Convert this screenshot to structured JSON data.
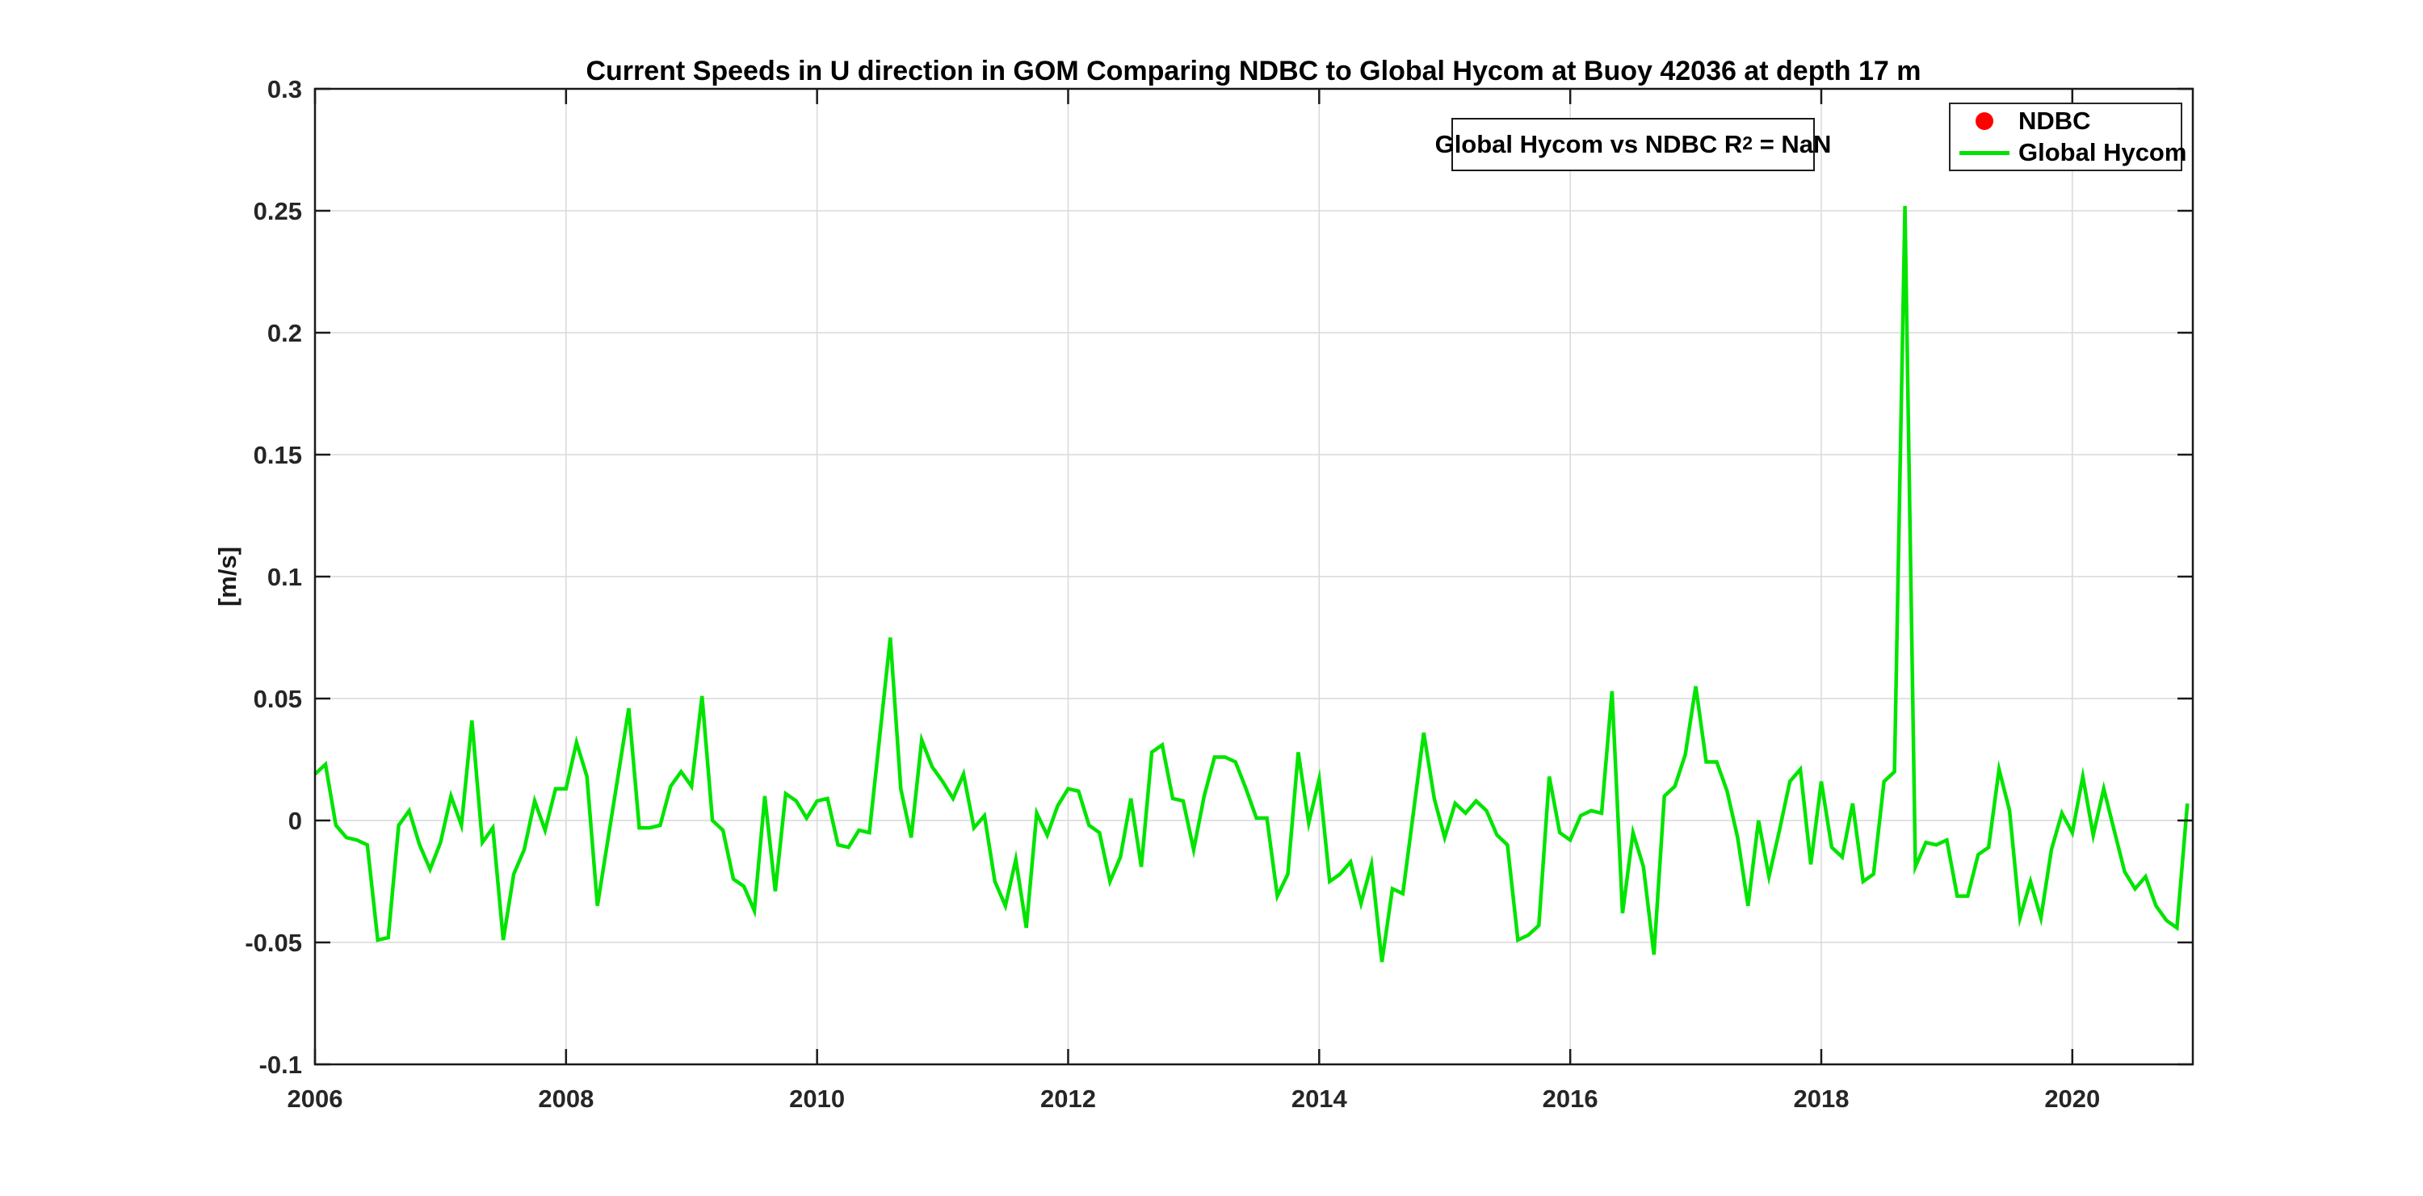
{
  "header": {
    "title": "Current Speeds in U direction in GOM Comparing NDBC to Global Hycom at Buoy  42036  at depth  17 m"
  },
  "annotation": {
    "text_main": "Global Hycom vs NDBC R",
    "text_sup": "2",
    "text_tail": " = NaN"
  },
  "legend": {
    "items": [
      {
        "label": "NDBC",
        "marker": "dot",
        "color": "#ff0000"
      },
      {
        "label": "Global Hycom",
        "marker": "line",
        "color": "#00e400"
      }
    ]
  },
  "colors": {
    "line_green": "#00e400",
    "marker_red": "#ff0000",
    "grid": "#d9d9d9",
    "axis": "#1a1a1a",
    "tick_text": "#262626"
  },
  "chart_data": {
    "type": "line",
    "title": "Current Speeds in U direction in GOM Comparing NDBC to Global Hycom at Buoy  42036  at depth  17 m",
    "xlabel": "",
    "ylabel": "[m/s]",
    "xlim": [
      2006,
      2020.96
    ],
    "ylim": [
      -0.1,
      0.3
    ],
    "grid": true,
    "legend_position": "top-right",
    "x_ticks": [
      2006,
      2008,
      2010,
      2012,
      2014,
      2016,
      2018,
      2020
    ],
    "x_tick_labels": [
      "2006",
      "2008",
      "2010",
      "2012",
      "2014",
      "2016",
      "2018",
      "2020"
    ],
    "y_ticks": [
      -0.1,
      -0.05,
      0,
      0.05,
      0.1,
      0.15,
      0.2,
      0.25,
      0.3
    ],
    "y_tick_labels": [
      "-0.1",
      "-0.05",
      "0",
      "0.05",
      "0.1",
      "0.15",
      "0.2",
      "0.25",
      "0.3"
    ],
    "x_start": 2006.0,
    "points_per_year": 12,
    "series": [
      {
        "name": "NDBC",
        "type": "scatter",
        "color": "#ff0000",
        "values": []
      },
      {
        "name": "Global Hycom",
        "type": "line",
        "color": "#00e400",
        "values": [
          0.019,
          0.023,
          -0.002,
          -0.007,
          -0.008,
          -0.01,
          -0.049,
          -0.048,
          -0.002,
          0.004,
          -0.01,
          -0.02,
          -0.009,
          0.01,
          -0.002,
          0.041,
          -0.009,
          -0.003,
          -0.049,
          -0.022,
          -0.012,
          0.008,
          -0.004,
          0.013,
          0.013,
          0.032,
          0.018,
          -0.035,
          -0.008,
          0.019,
          0.046,
          -0.003,
          -0.003,
          -0.002,
          0.014,
          0.02,
          0.014,
          0.051,
          0.0,
          -0.004,
          -0.024,
          -0.027,
          -0.037,
          0.01,
          -0.029,
          0.011,
          0.008,
          0.001,
          0.008,
          0.009,
          -0.01,
          -0.011,
          -0.004,
          -0.005,
          0.035,
          0.075,
          0.013,
          -0.007,
          0.033,
          0.022,
          0.016,
          0.009,
          0.019,
          -0.003,
          0.002,
          -0.025,
          -0.035,
          -0.016,
          -0.044,
          0.003,
          -0.006,
          0.006,
          0.013,
          0.012,
          -0.002,
          -0.005,
          -0.025,
          -0.015,
          0.009,
          -0.019,
          0.028,
          0.031,
          0.009,
          0.008,
          -0.012,
          0.01,
          0.026,
          0.026,
          0.024,
          0.013,
          0.001,
          0.001,
          -0.031,
          -0.022,
          0.028,
          -0.001,
          0.017,
          -0.025,
          -0.022,
          -0.017,
          -0.034,
          -0.018,
          -0.058,
          -0.028,
          -0.03,
          0.003,
          0.036,
          0.009,
          -0.007,
          0.007,
          0.003,
          0.008,
          0.004,
          -0.006,
          -0.01,
          -0.049,
          -0.047,
          -0.043,
          0.018,
          -0.005,
          -0.008,
          0.002,
          0.004,
          0.003,
          0.053,
          -0.038,
          -0.005,
          -0.019,
          -0.055,
          0.01,
          0.014,
          0.027,
          0.055,
          0.024,
          0.024,
          0.012,
          -0.007,
          -0.035,
          0.0,
          -0.023,
          -0.004,
          0.016,
          0.021,
          -0.018,
          0.016,
          -0.011,
          -0.015,
          0.007,
          -0.025,
          -0.022,
          0.016,
          0.02,
          0.252,
          -0.019,
          -0.009,
          -0.01,
          -0.008,
          -0.031,
          -0.031,
          -0.014,
          -0.011,
          0.021,
          0.004,
          -0.04,
          -0.025,
          -0.04,
          -0.012,
          0.003,
          -0.005,
          0.018,
          -0.006,
          0.013,
          -0.004,
          -0.021,
          -0.028,
          -0.023,
          -0.035,
          -0.041,
          -0.044,
          0.007
        ]
      }
    ]
  }
}
